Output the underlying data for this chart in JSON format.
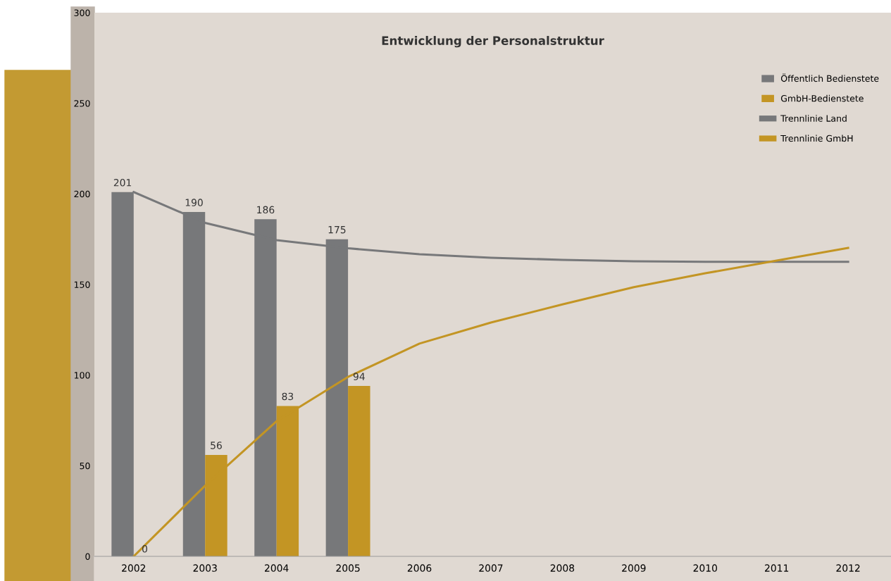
{
  "chart_data": {
    "type": "bar",
    "title": "Entwicklung der Personalstruktur",
    "categories": [
      "2002",
      "2003",
      "2004",
      "2005",
      "2006",
      "2007",
      "2008",
      "2009",
      "2010",
      "2011",
      "2012"
    ],
    "series": [
      {
        "name": "Öffentlich Bedienstete",
        "color": "#77787a",
        "values": [
          201,
          190,
          186,
          175,
          null,
          null,
          null,
          null,
          null,
          null,
          null
        ],
        "value_labels": [
          "201",
          "190",
          "186",
          "175",
          null,
          null,
          null,
          null,
          null,
          null,
          null
        ]
      },
      {
        "name": "GmbH-Bedienstete",
        "color": "#c39524",
        "values": [
          0,
          56,
          83,
          94,
          null,
          null,
          null,
          null,
          null,
          null,
          null
        ],
        "value_labels": [
          null,
          "56",
          "83",
          "94",
          null,
          null,
          null,
          null,
          null,
          null,
          null
        ]
      },
      {
        "name": "Trennlinie Land",
        "type": "line",
        "color": "#77787a",
        "values": [
          201,
          184,
          174.5,
          170,
          166.7,
          164.8,
          163.6,
          162.8,
          162.5,
          162.5,
          162.5
        ]
      },
      {
        "name": "Trennlinie GmbH",
        "type": "line",
        "color": "#c39524",
        "values": [
          0,
          39,
          74.6,
          99,
          117.4,
          129,
          139,
          148.5,
          156.2,
          163.2,
          170.2
        ]
      }
    ],
    "ylim": [
      0,
      300
    ],
    "yticks": [
      0,
      50,
      100,
      150,
      200,
      250,
      300
    ],
    "annotations": [
      {
        "text": "0",
        "x": "2002",
        "y": 0
      }
    ],
    "grid": false,
    "legend": "top right",
    "marker": "none",
    "line_style": "solid"
  }
}
